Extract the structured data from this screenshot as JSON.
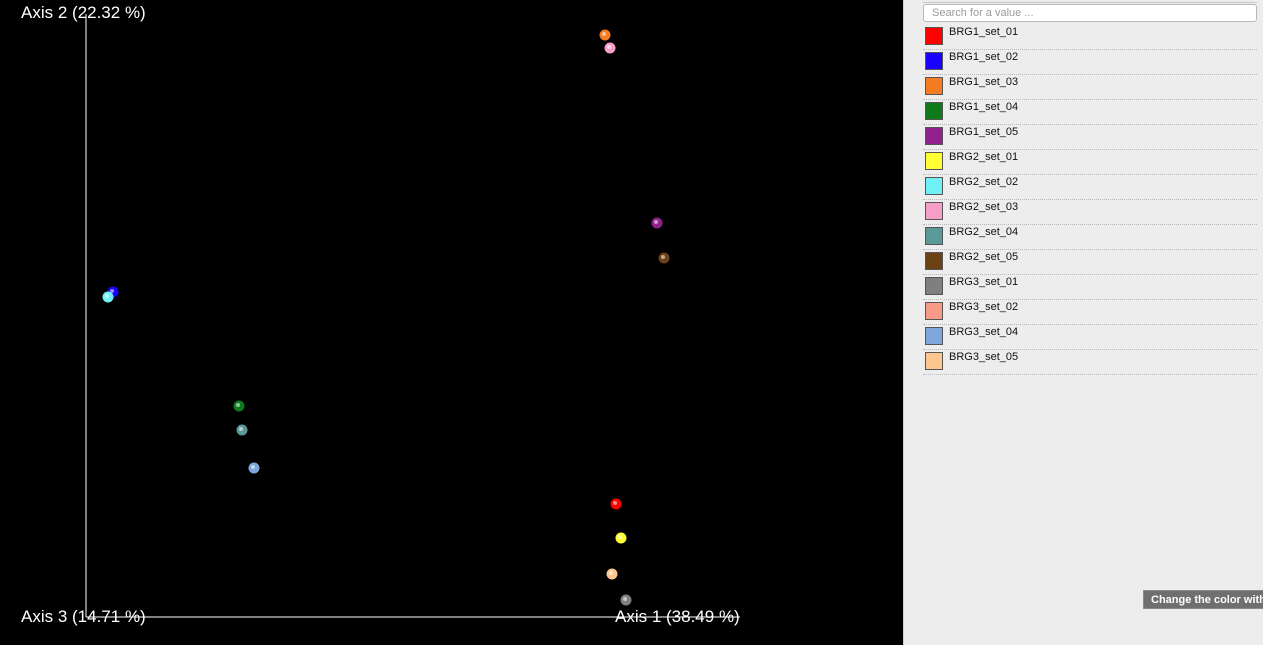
{
  "plot": {
    "axis2_label": "Axis 2 (22.32 %)",
    "axis3_label": "Axis 3 (14.71 %)",
    "axis1_label": "Axis 1 (38.49 %)",
    "background": "#000000",
    "axis_color": "#ffffff"
  },
  "sidebar": {
    "search_placeholder": "Search for a value ...",
    "items": [
      {
        "label": "BRG1_set_01",
        "color": "#ff0000"
      },
      {
        "label": "BRG1_set_02",
        "color": "#1a00ff"
      },
      {
        "label": "BRG1_set_03",
        "color": "#f47b20"
      },
      {
        "label": "BRG1_set_04",
        "color": "#0f7a1c"
      },
      {
        "label": "BRG1_set_05",
        "color": "#91218c"
      },
      {
        "label": "BRG2_set_01",
        "color": "#ffff33"
      },
      {
        "label": "BRG2_set_02",
        "color": "#6ff0f5"
      },
      {
        "label": "BRG2_set_03",
        "color": "#f59ec8"
      },
      {
        "label": "BRG2_set_04",
        "color": "#5b9898"
      },
      {
        "label": "BRG2_set_05",
        "color": "#6b4215"
      },
      {
        "label": "BRG3_set_01",
        "color": "#7f7f7f"
      },
      {
        "label": "BRG3_set_02",
        "color": "#f59b86"
      },
      {
        "label": "BRG3_set_04",
        "color": "#7ea6dc"
      },
      {
        "label": "BRG3_set_05",
        "color": "#fcc68f"
      }
    ]
  },
  "tooltip": {
    "text": "Change the color with"
  }
}
